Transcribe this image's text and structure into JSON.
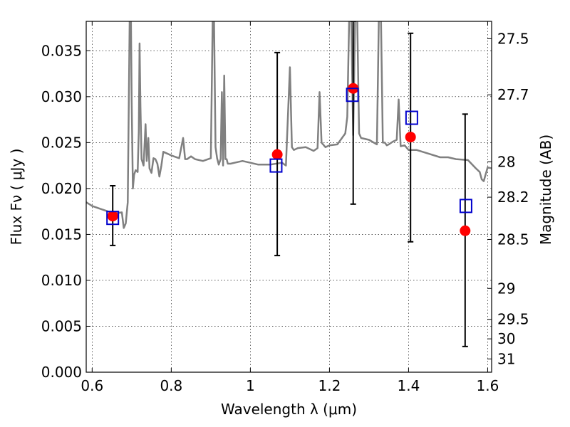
{
  "chart_data": {
    "type": "scatter",
    "title": "",
    "xlabel": "Wavelength  λ (μm)",
    "ylabel": "Flux  Fν  ( μJy )",
    "y2label": "Magnitude (AB)",
    "xlim": [
      0.585,
      1.61
    ],
    "ylim": [
      0.0,
      0.0382
    ],
    "grid": true,
    "x_ticks": [
      {
        "value": 0.6,
        "label": "0.6"
      },
      {
        "value": 0.8,
        "label": "0.8"
      },
      {
        "value": 1.0,
        "label": "1"
      },
      {
        "value": 1.2,
        "label": "1.2"
      },
      {
        "value": 1.4,
        "label": "1.4"
      },
      {
        "value": 1.6,
        "label": "1.6"
      }
    ],
    "y_ticks": [
      {
        "value": 0.0,
        "label": "0.000"
      },
      {
        "value": 0.005,
        "label": "0.005"
      },
      {
        "value": 0.01,
        "label": "0.010"
      },
      {
        "value": 0.015,
        "label": "0.015"
      },
      {
        "value": 0.02,
        "label": "0.020"
      },
      {
        "value": 0.025,
        "label": "0.025"
      },
      {
        "value": 0.03,
        "label": "0.030"
      },
      {
        "value": 0.035,
        "label": "0.035"
      }
    ],
    "y2_ticks": [
      {
        "value": 27.5,
        "label": "27.5"
      },
      {
        "value": 27.7,
        "label": "27.7"
      },
      {
        "value": 28.0,
        "label": "28"
      },
      {
        "value": 28.2,
        "label": "28.2"
      },
      {
        "value": 28.5,
        "label": "28.5"
      },
      {
        "value": 29.0,
        "label": "29"
      },
      {
        "value": 29.5,
        "label": "29.5"
      },
      {
        "value": 30.0,
        "label": "30"
      },
      {
        "value": 31.0,
        "label": "31"
      }
    ],
    "series": [
      {
        "kind": "model_spectrum",
        "color": "#808080",
        "x": [
          0.585,
          0.6,
          0.62,
          0.64,
          0.66,
          0.675,
          0.68,
          0.685,
          0.69,
          0.695,
          0.698,
          0.7,
          0.703,
          0.706,
          0.71,
          0.715,
          0.718,
          0.72,
          0.722,
          0.725,
          0.73,
          0.735,
          0.738,
          0.742,
          0.745,
          0.75,
          0.755,
          0.76,
          0.765,
          0.77,
          0.775,
          0.78,
          0.8,
          0.82,
          0.83,
          0.835,
          0.84,
          0.85,
          0.86,
          0.88,
          0.9,
          0.905,
          0.908,
          0.912,
          0.916,
          0.92,
          0.925,
          0.928,
          0.931,
          0.934,
          0.937,
          0.94,
          0.943,
          0.946,
          0.95,
          0.96,
          0.98,
          1.0,
          1.02,
          1.05,
          1.08,
          1.09,
          1.1,
          1.105,
          1.11,
          1.12,
          1.14,
          1.16,
          1.17,
          1.175,
          1.18,
          1.19,
          1.2,
          1.22,
          1.24,
          1.245,
          1.25,
          1.255,
          1.26,
          1.265,
          1.27,
          1.275,
          1.28,
          1.3,
          1.32,
          1.325,
          1.33,
          1.335,
          1.34,
          1.345,
          1.35,
          1.36,
          1.37,
          1.375,
          1.38,
          1.39,
          1.4,
          1.42,
          1.45,
          1.48,
          1.5,
          1.52,
          1.55,
          1.57,
          1.58,
          1.585,
          1.59,
          1.6,
          1.61
        ],
        "y": [
          0.0185,
          0.0181,
          0.0178,
          0.0175,
          0.0173,
          0.0174,
          0.0157,
          0.0162,
          0.0185,
          0.039,
          0.039,
          0.0295,
          0.02,
          0.0215,
          0.022,
          0.0218,
          0.0262,
          0.0358,
          0.029,
          0.0232,
          0.0225,
          0.027,
          0.023,
          0.0255,
          0.0222,
          0.0217,
          0.0233,
          0.0232,
          0.0227,
          0.0213,
          0.0225,
          0.024,
          0.0236,
          0.0233,
          0.0255,
          0.0232,
          0.0232,
          0.0235,
          0.0232,
          0.023,
          0.0233,
          0.039,
          0.039,
          0.0245,
          0.0233,
          0.0226,
          0.0232,
          0.0305,
          0.0225,
          0.0323,
          0.0232,
          0.0232,
          0.0227,
          0.0227,
          0.0227,
          0.0228,
          0.023,
          0.0228,
          0.0226,
          0.0226,
          0.0228,
          0.0225,
          0.0332,
          0.0245,
          0.0242,
          0.0244,
          0.0245,
          0.0241,
          0.0244,
          0.0305,
          0.025,
          0.0245,
          0.0247,
          0.0248,
          0.026,
          0.0278,
          0.039,
          0.039,
          0.0258,
          0.039,
          0.039,
          0.026,
          0.0255,
          0.0253,
          0.0248,
          0.039,
          0.039,
          0.025,
          0.025,
          0.0247,
          0.0248,
          0.0251,
          0.0253,
          0.0297,
          0.0246,
          0.0247,
          0.0242,
          0.0242,
          0.0238,
          0.0234,
          0.0234,
          0.0232,
          0.0231,
          0.0222,
          0.0218,
          0.021,
          0.0208,
          0.0223,
          0.0222
        ]
      },
      {
        "kind": "observed",
        "name": "",
        "marker": "circle",
        "color": "#ff0000",
        "points": [
          {
            "x": 0.652,
            "y": 0.017
          },
          {
            "x": 1.068,
            "y": 0.0237
          },
          {
            "x": 1.26,
            "y": 0.0309
          },
          {
            "x": 1.405,
            "y": 0.0256
          },
          {
            "x": 1.543,
            "y": 0.0154
          }
        ]
      },
      {
        "kind": "model_photometry",
        "name": "",
        "marker": "square",
        "color": "#0000cc",
        "points": [
          {
            "x": 0.652,
            "y": 0.0168
          },
          {
            "x": 1.065,
            "y": 0.0225
          },
          {
            "x": 1.258,
            "y": 0.0302
          },
          {
            "x": 1.408,
            "y": 0.0277
          },
          {
            "x": 1.545,
            "y": 0.0181
          }
        ]
      },
      {
        "kind": "errorbars",
        "color": "#000000",
        "points": [
          {
            "x": 0.652,
            "low": 0.0138,
            "high": 0.0203
          },
          {
            "x": 1.068,
            "low": 0.0127,
            "high": 0.0348
          },
          {
            "x": 1.26,
            "low": 0.0183,
            "high": 0.0382
          },
          {
            "x": 1.405,
            "low": 0.0142,
            "high": 0.0369
          },
          {
            "x": 1.543,
            "low": 0.0028,
            "high": 0.0281
          }
        ]
      }
    ]
  }
}
